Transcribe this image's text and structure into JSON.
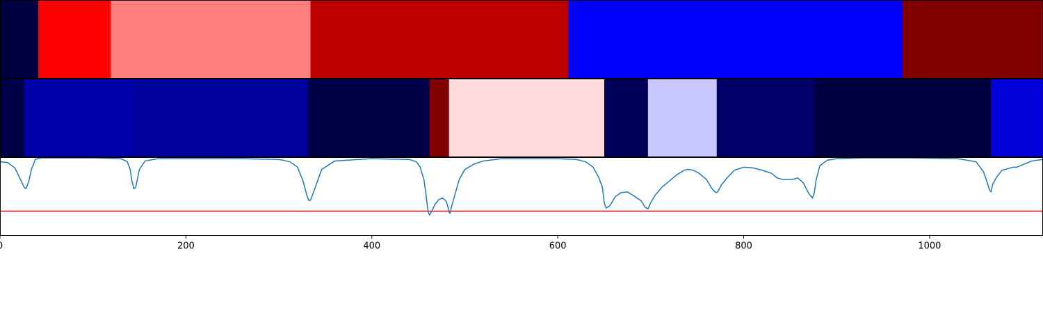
{
  "chart_data": [
    {
      "type": "heatmap",
      "panel": "top-band",
      "segments": [
        {
          "start": 0,
          "end": 41,
          "color": "#000040"
        },
        {
          "start": 41,
          "end": 119,
          "color": "#ff0000"
        },
        {
          "start": 119,
          "end": 334,
          "color": "#ff7f7f"
        },
        {
          "start": 334,
          "end": 611,
          "color": "#bf0000"
        },
        {
          "start": 611,
          "end": 971,
          "color": "#0000ff"
        },
        {
          "start": 971,
          "end": 1122,
          "color": "#800000"
        }
      ]
    },
    {
      "type": "heatmap",
      "panel": "middle-band",
      "segments": [
        {
          "start": 0,
          "end": 26,
          "color": "#000048"
        },
        {
          "start": 26,
          "end": 143,
          "color": "#0000a8"
        },
        {
          "start": 143,
          "end": 331,
          "color": "#00009c"
        },
        {
          "start": 331,
          "end": 462,
          "color": "#000048"
        },
        {
          "start": 462,
          "end": 483,
          "color": "#800000"
        },
        {
          "start": 483,
          "end": 650,
          "color": "#ffdcdc"
        },
        {
          "start": 650,
          "end": 697,
          "color": "#000058"
        },
        {
          "start": 697,
          "end": 771,
          "color": "#c8c8ff"
        },
        {
          "start": 771,
          "end": 876,
          "color": "#000068"
        },
        {
          "start": 876,
          "end": 1066,
          "color": "#000040"
        },
        {
          "start": 1066,
          "end": 1122,
          "color": "#0000d8"
        }
      ]
    },
    {
      "type": "line",
      "panel": "bottom-line",
      "xlim": [
        0,
        1122
      ],
      "ylim": [
        0,
        1
      ],
      "x_ticks": [
        0,
        200,
        400,
        600,
        800,
        1000
      ],
      "x_tick_labels": [
        "0",
        "200",
        "400",
        "600",
        "800",
        "1000"
      ],
      "threshold": 0.31,
      "threshold_color": "#ff0000",
      "line_color": "#1f77b4",
      "series": [
        {
          "x": [
            0,
            8,
            16,
            22,
            26,
            28,
            31,
            34,
            38,
            44,
            60,
            100,
            130,
            137,
            140,
            142,
            144,
            146,
            150,
            156,
            170,
            200,
            260,
            300,
            312,
            320,
            326,
            330,
            332,
            334,
            338,
            346,
            360,
            400,
            440,
            448,
            452,
            456,
            458,
            460,
            461,
            462,
            464,
            468,
            472,
            476,
            480,
            482,
            483,
            484,
            486,
            490,
            494,
            500,
            510,
            520,
            540,
            600,
            620,
            630,
            638,
            644,
            648,
            650,
            652,
            656,
            662,
            668,
            675,
            683,
            690,
            694,
            697,
            700,
            705,
            712,
            720,
            728,
            736,
            740,
            746,
            752,
            760,
            766,
            770,
            772,
            776,
            782,
            790,
            800,
            810,
            820,
            830,
            836,
            842,
            846,
            852,
            858,
            864,
            870,
            874,
            876,
            878,
            882,
            890,
            900,
            930,
            980,
            1030,
            1050,
            1058,
            1062,
            1064,
            1066,
            1068,
            1072,
            1078,
            1084,
            1090,
            1094,
            1100,
            1110,
            1122
          ],
          "y": [
            0.95,
            0.94,
            0.87,
            0.72,
            0.62,
            0.6,
            0.7,
            0.86,
            0.98,
            1.0,
            1.0,
            1.0,
            0.99,
            0.95,
            0.85,
            0.7,
            0.6,
            0.62,
            0.85,
            0.96,
            0.99,
            0.99,
            0.99,
            0.98,
            0.95,
            0.88,
            0.7,
            0.52,
            0.45,
            0.45,
            0.58,
            0.85,
            0.96,
            0.99,
            0.98,
            0.95,
            0.88,
            0.72,
            0.55,
            0.35,
            0.29,
            0.26,
            0.3,
            0.4,
            0.46,
            0.48,
            0.44,
            0.36,
            0.3,
            0.28,
            0.38,
            0.55,
            0.72,
            0.85,
            0.92,
            0.96,
            0.99,
            0.99,
            0.98,
            0.95,
            0.88,
            0.75,
            0.62,
            0.42,
            0.35,
            0.38,
            0.5,
            0.55,
            0.56,
            0.5,
            0.44,
            0.36,
            0.34,
            0.42,
            0.52,
            0.62,
            0.7,
            0.78,
            0.84,
            0.85,
            0.84,
            0.8,
            0.72,
            0.6,
            0.55,
            0.56,
            0.65,
            0.74,
            0.84,
            0.88,
            0.87,
            0.84,
            0.8,
            0.74,
            0.72,
            0.72,
            0.72,
            0.74,
            0.68,
            0.54,
            0.48,
            0.55,
            0.72,
            0.9,
            0.97,
            0.99,
            1.0,
            1.0,
            0.99,
            0.95,
            0.82,
            0.68,
            0.6,
            0.56,
            0.66,
            0.75,
            0.84,
            0.86,
            0.88,
            0.88,
            0.91,
            0.96,
            0.98
          ]
        }
      ]
    }
  ]
}
